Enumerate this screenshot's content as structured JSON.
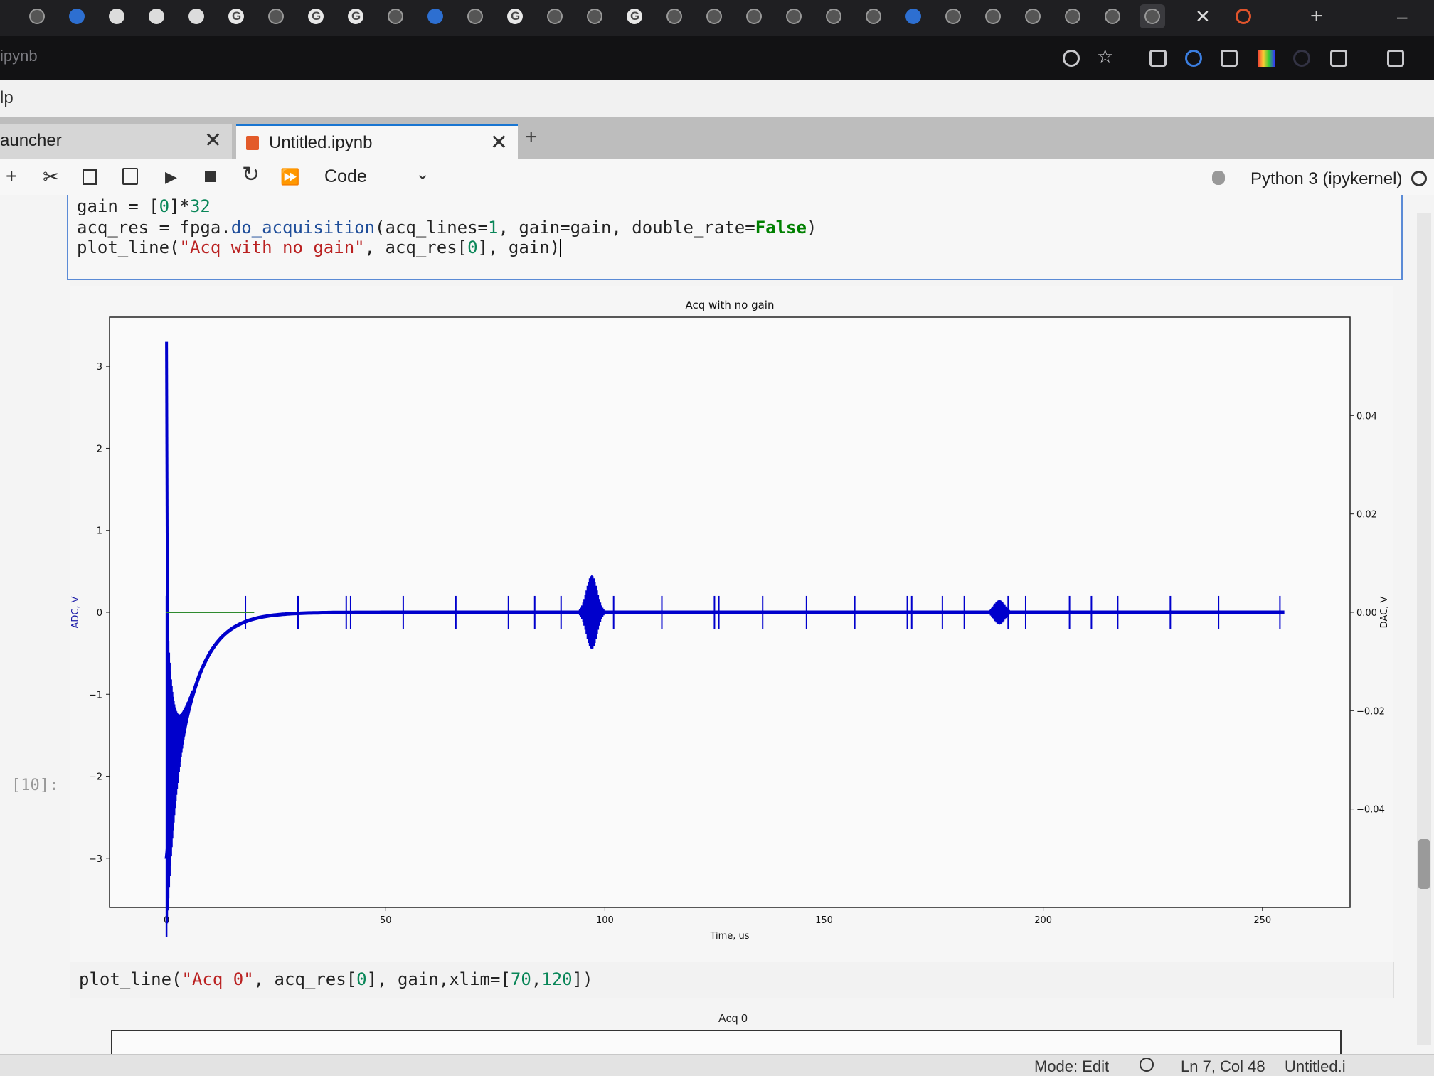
{
  "browser": {
    "url_fragment": "ipynb",
    "tabs_icons": [
      "chrome-icon",
      "earth-icon",
      "github-icon",
      "github-icon",
      "github-icon",
      "google-icon",
      "s-icon",
      "google-icon",
      "google-icon",
      "chrome-icon",
      "graduation-cap-icon",
      "r-icon",
      "google-icon",
      "chrome-icon",
      "chrome-icon",
      "google-icon",
      "video-icon",
      "chrome-icon",
      "chrome-icon",
      "chrome-icon",
      "chrome-icon",
      "grid-icon",
      "cube-icon",
      "chrome-icon",
      "chrome-icon",
      "chrome-icon",
      "chrome-icon",
      "chrome-icon",
      "chrome-icon"
    ]
  },
  "menubar": {
    "label": "lp"
  },
  "notebook_tabs": [
    {
      "label": "auncher"
    },
    {
      "label": "Untitled.ipynb"
    }
  ],
  "toolbar": {
    "cell_type": "Code",
    "kernel": "Python 3 (ipykernel)"
  },
  "cell1": {
    "line1_a": "gain = [",
    "line1_b": "0",
    "line1_c": "]*",
    "line1_d": "32",
    "line2_a": "acq_res = fpga.",
    "line2_fn": "do_acquisition",
    "line2_b": "(acq_lines=",
    "line2_c": "1",
    "line2_d": ", gain=gain, double_rate=",
    "line2_kw": "False",
    "line2_e": ")",
    "line3_a": "plot_line(",
    "line3_str": "\"Acq with no gain\"",
    "line3_b": ", acq_res[",
    "line3_c": "0",
    "line3_d": "], gain)"
  },
  "chart_data": {
    "type": "line",
    "title": "Acq with no gain",
    "xlabel": "Time, us",
    "ylabel": "ADC, V",
    "y2label": "DAC, V",
    "xlim": [
      -13,
      270
    ],
    "ylim": [
      -3.6,
      3.6
    ],
    "y2lim": [
      -0.06,
      0.06
    ],
    "xticks": [
      "0",
      "50",
      "100",
      "150",
      "200",
      "250"
    ],
    "xtick_values": [
      0,
      50,
      100,
      150,
      200,
      250
    ],
    "yticks": [
      "3",
      "2",
      "1",
      "0",
      "−1",
      "−2",
      "−3"
    ],
    "ytick_values": [
      3,
      2,
      1,
      0,
      -1,
      -2,
      -3
    ],
    "y2ticks": [
      "0.04",
      "0.02",
      "0.00",
      "−0.02",
      "−0.04"
    ],
    "y2tick_values": [
      0.04,
      0.02,
      0.0,
      -0.02,
      -0.04
    ],
    "series": [
      {
        "color": "#0000cc",
        "description": "ADC signal",
        "decay_start": [
          0,
          -3.0
        ],
        "spike_max": [
          0,
          3.3
        ],
        "spike_min": [
          0.4,
          -3.3
        ],
        "settled_value": 0.0,
        "glitch_x": [
          18,
          30,
          41,
          42,
          54,
          66,
          78,
          84,
          90,
          96,
          98,
          102,
          113,
          125,
          126,
          136,
          146,
          157,
          169,
          170,
          177,
          182,
          192,
          196,
          206,
          211,
          217,
          229,
          240,
          254
        ],
        "glitch_amp": 0.2,
        "burst_x": [
          97,
          190
        ],
        "burst_amp": [
          0.45,
          0.15
        ]
      },
      {
        "color": "#2e8b2e",
        "description": "DAC gain",
        "x": [
          0,
          20
        ],
        "values": [
          0.0,
          0.0
        ]
      }
    ]
  },
  "cell2": {
    "prompt": "[10]:",
    "a": "plot_line(",
    "str": "\"Acq 0\"",
    "b": ", acq_res[",
    "c": "0",
    "d": "], gain,xlim=[",
    "e": "70",
    "f": ",",
    "g": "120",
    "h": "])",
    "plot_title": "Acq 0"
  },
  "statusbar": {
    "mode": "Mode: Edit",
    "position": "Ln 7, Col 48",
    "file": "Untitled.i"
  }
}
